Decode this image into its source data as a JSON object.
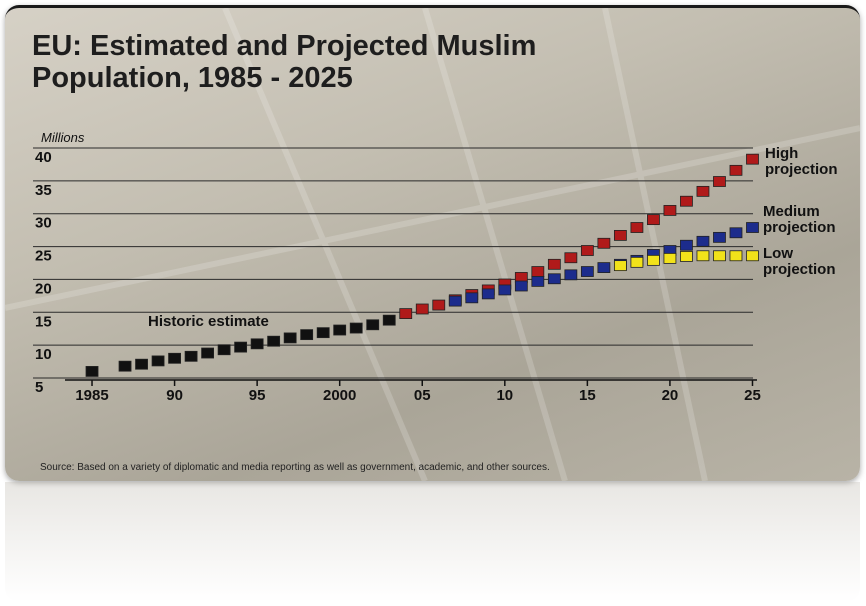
{
  "chart_data": {
    "type": "scatter",
    "title": "EU: Estimated and Projected Muslim Population, 1985 - 2025",
    "y_label": "Millions",
    "source": "Source: Based on a variety of diplomatic and media reporting as well as government, academic, and other sources.",
    "x": [
      1985,
      1986,
      1987,
      1988,
      1989,
      1990,
      1991,
      1992,
      1993,
      1994,
      1995,
      1996,
      1997,
      1998,
      1999,
      2000,
      2001,
      2002,
      2003,
      2004,
      2005,
      2006,
      2007,
      2008,
      2009,
      2010,
      2011,
      2012,
      2013,
      2014,
      2015,
      2016,
      2017,
      2018,
      2019,
      2020,
      2021,
      2022,
      2023,
      2024,
      2025
    ],
    "series": [
      {
        "name": "Historic estimate",
        "color": "#111111",
        "values": [
          6.0,
          null,
          6.8,
          7.1,
          7.6,
          8.0,
          8.3,
          8.8,
          9.3,
          9.7,
          10.2,
          10.6,
          11.1,
          11.6,
          11.9,
          12.3,
          12.6,
          13.1,
          13.8,
          null,
          null,
          null,
          null,
          null,
          null,
          null,
          null,
          null,
          null,
          null,
          null,
          null,
          null,
          null,
          null,
          null,
          null,
          null,
          null,
          null,
          null
        ]
      },
      {
        "name": "High projection",
        "color": "#b01a1a",
        "values": [
          null,
          null,
          null,
          null,
          null,
          null,
          null,
          null,
          null,
          null,
          null,
          null,
          null,
          null,
          null,
          null,
          null,
          null,
          null,
          14.8,
          15.5,
          16.1,
          16.9,
          17.7,
          18.4,
          19.3,
          20.3,
          21.2,
          22.3,
          23.3,
          24.4,
          25.5,
          26.7,
          27.9,
          29.1,
          30.5,
          31.9,
          33.4,
          34.9,
          36.6,
          38.3
        ]
      },
      {
        "name": "Medium projection",
        "color": "#1c2c8c",
        "values": [
          null,
          null,
          null,
          null,
          null,
          null,
          null,
          null,
          null,
          null,
          null,
          null,
          null,
          null,
          null,
          null,
          null,
          null,
          null,
          null,
          null,
          null,
          16.7,
          17.2,
          17.8,
          18.4,
          19.0,
          19.7,
          20.1,
          20.7,
          21.2,
          21.8,
          22.3,
          22.9,
          23.8,
          24.4,
          25.2,
          25.8,
          26.4,
          27.1,
          27.9
        ]
      },
      {
        "name": "Low projection",
        "color": "#f2e21a",
        "values": [
          null,
          null,
          null,
          null,
          null,
          null,
          null,
          null,
          null,
          null,
          null,
          null,
          null,
          null,
          null,
          null,
          null,
          null,
          null,
          null,
          null,
          null,
          null,
          null,
          null,
          null,
          null,
          null,
          null,
          null,
          null,
          null,
          22.1,
          22.6,
          22.9,
          23.2,
          23.5,
          23.6,
          23.6,
          23.6,
          23.6
        ]
      }
    ],
    "xlim": [
      1983,
      2026
    ],
    "xticks": [
      1985,
      {
        "value": 1990,
        "label": "90"
      },
      {
        "value": 1995,
        "label": "95"
      },
      2000,
      {
        "value": 2005,
        "label": "05"
      },
      {
        "value": 2010,
        "label": "10"
      },
      {
        "value": 2015,
        "label": "15"
      },
      {
        "value": 2020,
        "label": "20"
      },
      {
        "value": 2025,
        "label": "25"
      }
    ],
    "ylim": [
      5,
      40
    ],
    "yticks": [
      5,
      10,
      15,
      20,
      25,
      30,
      35,
      40
    ],
    "grid": true
  }
}
